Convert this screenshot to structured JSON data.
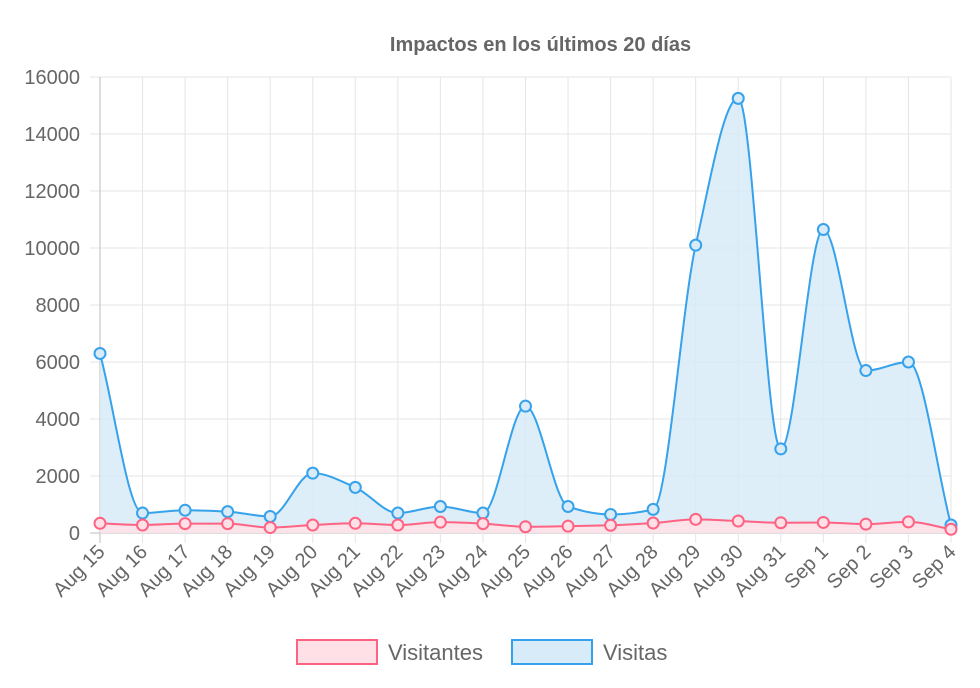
{
  "chart_data": {
    "type": "line",
    "title": "Impactos en los últimos 20 días",
    "xlabel": "",
    "ylabel": "",
    "categories": [
      "Aug 15",
      "Aug 16",
      "Aug 17",
      "Aug 18",
      "Aug 19",
      "Aug 20",
      "Aug 21",
      "Aug 22",
      "Aug 23",
      "Aug 24",
      "Aug 25",
      "Aug 26",
      "Aug 27",
      "Aug 28",
      "Aug 29",
      "Aug 30",
      "Aug 31",
      "Sep 1",
      "Sep 2",
      "Sep 3",
      "Sep 4"
    ],
    "series": [
      {
        "name": "Visitantes",
        "color": "#ff6384",
        "fill": "#ffe0e6",
        "values": [
          340,
          280,
          330,
          330,
          190,
          280,
          340,
          280,
          380,
          330,
          220,
          240,
          270,
          350,
          480,
          420,
          360,
          370,
          310,
          390,
          130
        ]
      },
      {
        "name": "Visitas",
        "color": "#36a2eb",
        "fill": "#d7ebf8",
        "values": [
          6300,
          700,
          800,
          750,
          580,
          2100,
          1600,
          700,
          930,
          700,
          4450,
          930,
          650,
          830,
          10100,
          15250,
          2950,
          10650,
          5700,
          6000,
          280
        ]
      }
    ],
    "ylim": [
      0,
      16000
    ],
    "yticks": [
      0,
      2000,
      4000,
      6000,
      8000,
      10000,
      12000,
      14000,
      16000
    ],
    "grid": true,
    "legend_position": "bottom"
  }
}
